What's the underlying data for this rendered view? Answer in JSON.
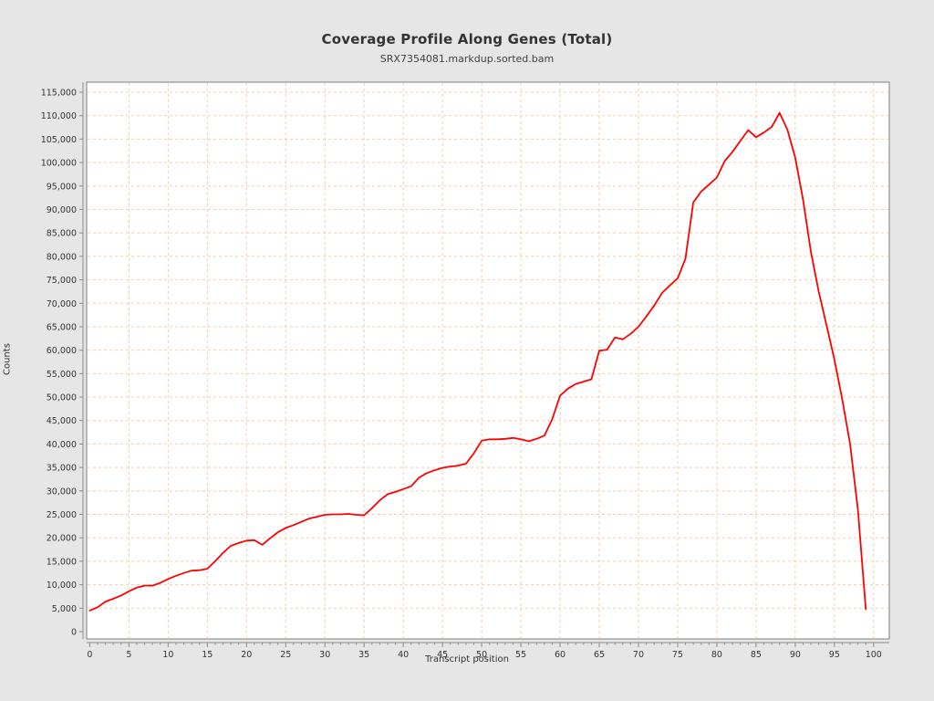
{
  "header": {
    "title": "Coverage Profile Along Genes (Total)",
    "subtitle": "SRX7354081.markdup.sorted.bam"
  },
  "style": {
    "page_background": "#e6e6e6",
    "plot_background": "#ffffff",
    "plot_border_color": "#7d7d7d",
    "axis_line_color": "#8a8a8a",
    "grid_color": "#f6cda6",
    "line_color": "#ff0000",
    "text_color": "#333333"
  },
  "chart_data": {
    "type": "line",
    "title": "Coverage Profile Along Genes (Total)",
    "subtitle": "SRX7354081.markdup.sorted.bam",
    "xlabel": "Transcript position",
    "ylabel": "Counts",
    "xlim": [
      -0.5,
      102
    ],
    "ylim": [
      -1500,
      117000
    ],
    "x_ticks": [
      0,
      5,
      10,
      15,
      20,
      25,
      30,
      35,
      40,
      45,
      50,
      55,
      60,
      65,
      70,
      75,
      80,
      85,
      90,
      95,
      100
    ],
    "y_ticks": [
      0,
      5000,
      10000,
      15000,
      20000,
      25000,
      30000,
      35000,
      40000,
      45000,
      50000,
      55000,
      60000,
      65000,
      70000,
      75000,
      80000,
      85000,
      90000,
      95000,
      100000,
      105000,
      110000,
      115000
    ],
    "grid": true,
    "grid_style": "dashed",
    "legend_position": "none",
    "series": [
      {
        "name": "SRX7354081.markdup.sorted.bam",
        "color": "#ff0000",
        "x": [
          0,
          1,
          2,
          3,
          4,
          5,
          6,
          7,
          8,
          9,
          10,
          11,
          12,
          13,
          14,
          15,
          16,
          17,
          18,
          19,
          20,
          21,
          22,
          23,
          24,
          25,
          26,
          27,
          28,
          29,
          30,
          31,
          32,
          33,
          34,
          35,
          36,
          37,
          38,
          39,
          40,
          41,
          42,
          43,
          44,
          45,
          46,
          47,
          48,
          49,
          50,
          51,
          52,
          53,
          54,
          55,
          56,
          57,
          58,
          59,
          60,
          61,
          62,
          63,
          64,
          65,
          66,
          67,
          68,
          69,
          70,
          71,
          72,
          73,
          74,
          75,
          76,
          77,
          78,
          79,
          80,
          81,
          82,
          83,
          84,
          85,
          86,
          87,
          88,
          89,
          90,
          91,
          92,
          93,
          94,
          95,
          96,
          97,
          98,
          99
        ],
        "y": [
          4500,
          5200,
          6400,
          7000,
          7700,
          8600,
          9400,
          9800,
          9800,
          10400,
          11200,
          11900,
          12500,
          13000,
          13100,
          13400,
          15000,
          16800,
          18300,
          18900,
          19400,
          19500,
          18500,
          19900,
          21200,
          22100,
          22700,
          23400,
          24100,
          24500,
          24900,
          25000,
          25000,
          25100,
          24900,
          24800,
          26300,
          28000,
          29300,
          29800,
          30400,
          31000,
          32800,
          33800,
          34400,
          34900,
          35200,
          35400,
          35800,
          38000,
          40700,
          41000,
          41000,
          41100,
          41300,
          41000,
          40600,
          41100,
          41800,
          45300,
          50300,
          51800,
          52800,
          53300,
          53800,
          59900,
          60100,
          62700,
          62300,
          63500,
          65000,
          67200,
          69500,
          72200,
          73800,
          75300,
          79500,
          91500,
          93800,
          95300,
          96800,
          100300,
          102300,
          104600,
          106900,
          105400,
          106400,
          107600,
          110600,
          107000,
          101000,
          92000,
          81000,
          72500,
          65300,
          58000,
          49500,
          40000,
          26000,
          4800
        ]
      }
    ]
  }
}
